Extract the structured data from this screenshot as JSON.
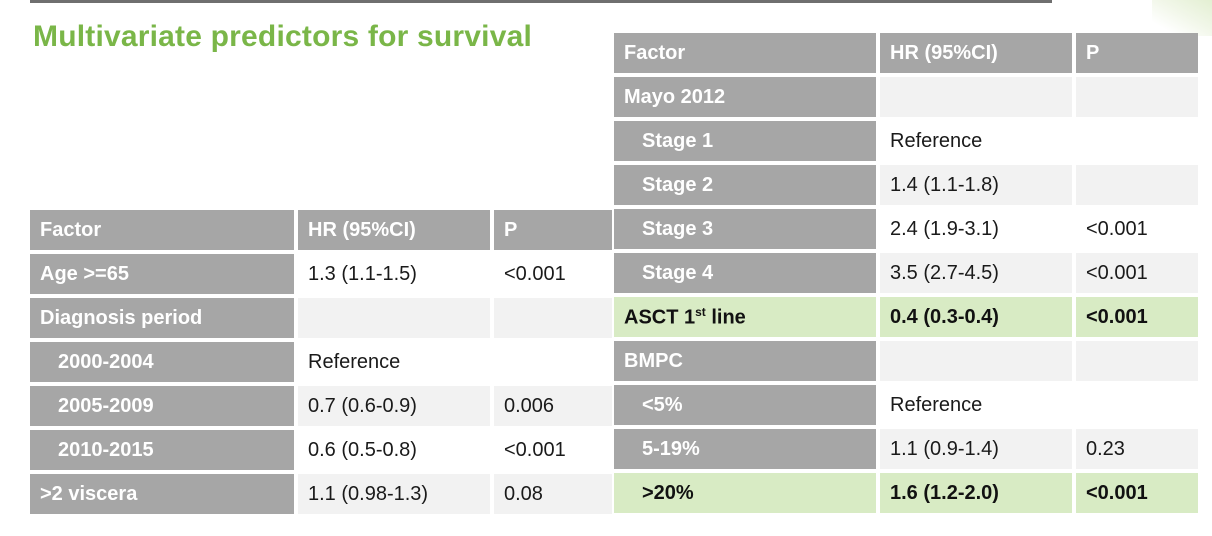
{
  "slide": {
    "title": "Multivariate predictors for survival"
  },
  "left_table": {
    "headers": [
      "Factor",
      "HR (95%CI)",
      "P"
    ],
    "rows": [
      [
        "Age >=65",
        "1.3 (1.1-1.5)",
        "<0.001"
      ],
      [
        "Diagnosis period",
        "",
        ""
      ],
      [
        "2000-2004",
        "Reference",
        ""
      ],
      [
        "2005-2009",
        "0.7 (0.6-0.9)",
        "0.006"
      ],
      [
        "2010-2015",
        "0.6 (0.5-0.8)",
        "<0.001"
      ],
      [
        ">2 viscera",
        "1.1 (0.98-1.3)",
        "0.08"
      ]
    ]
  },
  "right_table": {
    "headers": [
      "Factor",
      "HR (95%CI)",
      "P"
    ],
    "rows": [
      [
        "Mayo 2012",
        "",
        ""
      ],
      [
        "Stage 1",
        "Reference",
        ""
      ],
      [
        "Stage 2",
        "1.4 (1.1-1.8)",
        ""
      ],
      [
        "Stage 3",
        "2.4 (1.9-3.1)",
        "<0.001"
      ],
      [
        "Stage 4",
        "3.5 (2.7-4.5)",
        "<0.001"
      ],
      [
        "ASCT 1",
        "0.4 (0.3-0.4)",
        "<0.001"
      ],
      [
        "BMPC",
        "",
        ""
      ],
      [
        "<5%",
        "Reference",
        ""
      ],
      [
        "5-19%",
        "1.1 (0.9-1.4)",
        "0.23"
      ],
      [
        ">20%",
        "1.6 (1.2-2.0)",
        "<0.001"
      ]
    ],
    "asct_superscript": "st",
    "asct_suffix": " line"
  },
  "colors": {
    "title_green": "#7ab648",
    "header_gray": "#a6a6a6",
    "highlight_green": "#d8ebc4",
    "alt_row_gray": "#f2f2f2"
  }
}
